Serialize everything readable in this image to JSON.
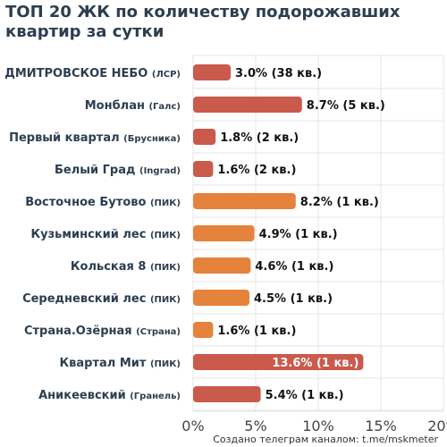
{
  "title": "ТОП 20 ЖК по количеству подорожавших квартир за сутки",
  "footer": "Создано телеграм каналом: t.me/mskmeter",
  "colors": {
    "red": "#c95a4c",
    "orange": "#e5823b",
    "label": "#2c3e50",
    "grid": "#e6e6e6"
  },
  "chart_data": {
    "type": "bar",
    "orientation": "horizontal",
    "title": "ТОП 20 ЖК по количеству подорожавших квартир за сутки",
    "xlim": [
      0,
      0.2
    ],
    "xticks": [
      {
        "value": 0,
        "label": "0%"
      },
      {
        "value": 0.05,
        "label": "5%"
      },
      {
        "value": 0.1,
        "label": "10%"
      },
      {
        "value": 0.15,
        "label": "15%"
      },
      {
        "value": 0.2,
        "label": "20%"
      }
    ],
    "grid": true,
    "bars": [
      {
        "name": "ДМИТРОВСКОЕ НЕБО",
        "developer": "(ЛСР)",
        "value": 0.03,
        "label": "3.0% (38 кв.)",
        "color": "red",
        "label_inside": false
      },
      {
        "name": "Монблан",
        "developer": "(Галс)",
        "value": 0.087,
        "label": "8.7% (5 кв.)",
        "color": "red",
        "label_inside": false
      },
      {
        "name": "Первый квартал",
        "developer": "(Брусника)",
        "value": 0.018,
        "label": "1.8% (2 кв.)",
        "color": "red",
        "label_inside": false
      },
      {
        "name": "Белый Град",
        "developer": "(Ingrad)",
        "value": 0.016,
        "label": "1.6% (2 кв.)",
        "color": "red",
        "label_inside": false
      },
      {
        "name": "Восточное Бутово",
        "developer": "(ПИК)",
        "value": 0.082,
        "label": "8.2% (1 кв.)",
        "color": "orange",
        "label_inside": false
      },
      {
        "name": "Кузьминский лес",
        "developer": "(ПИК)",
        "value": 0.049,
        "label": "4.9% (1 кв.)",
        "color": "orange",
        "label_inside": false
      },
      {
        "name": "Кольская 8",
        "developer": "(ПИК)",
        "value": 0.046,
        "label": "4.6% (1 кв.)",
        "color": "orange",
        "label_inside": false
      },
      {
        "name": "Середневский лес",
        "developer": "(ПИК)",
        "value": 0.045,
        "label": "4.5% (1 кв.)",
        "color": "orange",
        "label_inside": false
      },
      {
        "name": "Страна.Озёрная",
        "developer": "(Страна)",
        "value": 0.016,
        "label": "1.6% (1 кв.)",
        "color": "orange",
        "label_inside": false
      },
      {
        "name": "Квартал Мит",
        "developer": "(ПИК)",
        "value": 0.136,
        "label": "13.6% (1 кв.)",
        "color": "red",
        "label_inside": true
      },
      {
        "name": "Аникеевский",
        "developer": "(Гранель)",
        "value": 0.054,
        "label": "5.4% (1 кв.)",
        "color": "red",
        "label_inside": false
      }
    ]
  }
}
